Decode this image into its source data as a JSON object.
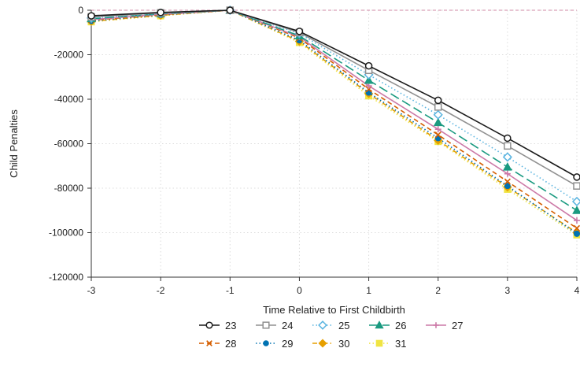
{
  "chart_data": {
    "type": "line",
    "title": "",
    "xlabel": "Time Relative to First Childbirth",
    "ylabel": "Child Penalties",
    "x": [
      -3,
      -2,
      -1,
      0,
      1,
      2,
      3,
      4
    ],
    "xlim": [
      -3,
      4
    ],
    "ylim": [
      -120000,
      0
    ],
    "yticks": [
      0,
      -20000,
      -40000,
      -60000,
      -80000,
      -100000,
      -120000
    ],
    "ytick_labels": [
      "0",
      "-20000",
      "-40000",
      "-60000",
      "-80000",
      "-100000",
      "-120000"
    ],
    "xtick_labels": [
      "-3",
      "-2",
      "-1",
      "0",
      "1",
      "2",
      "3",
      "4"
    ],
    "grid": true,
    "zero_reference_line": true,
    "reference_line_color": "#d9a0b8",
    "legend_position": "bottom",
    "series": [
      {
        "name": "23",
        "color": "#1a1a1a",
        "marker": "circle-open",
        "dash": "solid",
        "values": [
          -2500,
          -1000,
          0,
          -9500,
          -25000,
          -40500,
          -57500,
          -75000
        ]
      },
      {
        "name": "24",
        "color": "#909090",
        "marker": "square-open",
        "dash": "solid",
        "values": [
          -3000,
          -1200,
          0,
          -10000,
          -27000,
          -43500,
          -61000,
          -79000
        ]
      },
      {
        "name": "25",
        "color": "#5ab4e0",
        "marker": "diamond-open",
        "dash": "dotted",
        "values": [
          -3500,
          -1400,
          0,
          -10500,
          -29000,
          -47000,
          -66000,
          -86000
        ]
      },
      {
        "name": "26",
        "color": "#1a9a80",
        "marker": "triangle",
        "dash": "longdash",
        "values": [
          -3800,
          -1600,
          0,
          -11500,
          -31500,
          -50500,
          -70500,
          -90000
        ]
      },
      {
        "name": "27",
        "color": "#cc79a7",
        "marker": "plus",
        "dash": "solid",
        "values": [
          -4200,
          -1800,
          0,
          -12000,
          -34000,
          -53500,
          -73500,
          -94500
        ]
      },
      {
        "name": "28",
        "color": "#d55e00",
        "marker": "x",
        "dash": "dashed",
        "values": [
          -4500,
          -2000,
          0,
          -12500,
          -35500,
          -56000,
          -77000,
          -98000
        ]
      },
      {
        "name": "29",
        "color": "#0072b2",
        "marker": "circle",
        "dash": "dotted",
        "values": [
          -4800,
          -2100,
          0,
          -13500,
          -37000,
          -57500,
          -79000,
          -100500
        ]
      },
      {
        "name": "30",
        "color": "#e69f00",
        "marker": "diamond",
        "dash": "dashdot",
        "values": [
          -5000,
          -2300,
          0,
          -14000,
          -37500,
          -58500,
          -79500,
          -100000
        ]
      },
      {
        "name": "31",
        "color": "#f0e442",
        "marker": "square",
        "dash": "dotted",
        "values": [
          -5200,
          -2500,
          0,
          -14500,
          -38500,
          -59000,
          -80500,
          -101000
        ]
      }
    ]
  }
}
